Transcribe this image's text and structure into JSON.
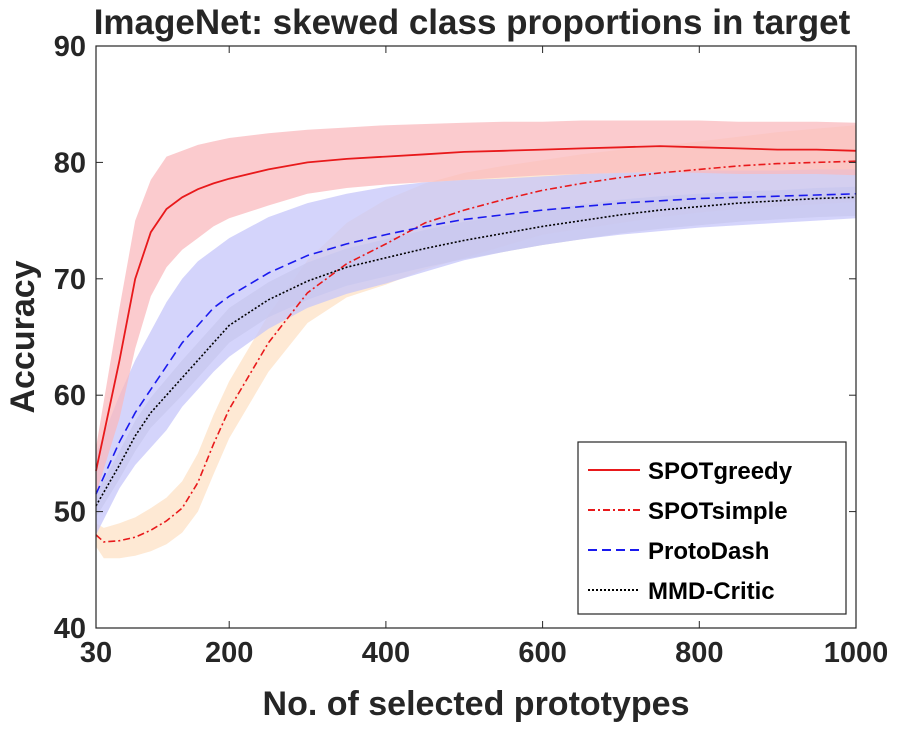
{
  "chart_data": {
    "type": "line",
    "title": "ImageNet: skewed class proportions in target",
    "xlabel": "No. of selected prototypes",
    "ylabel": "Accuracy",
    "xlim": [
      30,
      1000
    ],
    "ylim": [
      40,
      90
    ],
    "x_ticks": [
      30,
      200,
      400,
      600,
      800,
      1000
    ],
    "y_ticks": [
      40,
      50,
      60,
      70,
      80,
      90
    ],
    "legend_position": "bottom-right",
    "series": [
      {
        "name": "SPOTgreedy",
        "color": "#e8191b",
        "band_color": "#f9b9bd",
        "dash": "solid",
        "x": [
          30,
          60,
          80,
          100,
          120,
          140,
          160,
          180,
          200,
          250,
          300,
          350,
          400,
          450,
          500,
          550,
          600,
          650,
          700,
          750,
          800,
          850,
          900,
          950,
          1000
        ],
        "y": [
          53.5,
          63,
          70,
          74,
          76,
          77,
          77.7,
          78.2,
          78.6,
          79.4,
          80,
          80.3,
          80.5,
          80.7,
          80.9,
          81,
          81.1,
          81.2,
          81.3,
          81.4,
          81.3,
          81.2,
          81.1,
          81.1,
          81
        ],
        "upper": [
          55.5,
          67.5,
          75,
          78.5,
          80.5,
          81,
          81.5,
          81.8,
          82.1,
          82.5,
          82.8,
          83,
          83.2,
          83.3,
          83.4,
          83.5,
          83.5,
          83.6,
          83.6,
          83.6,
          83.6,
          83.5,
          83.5,
          83.5,
          83.4
        ],
        "lower": [
          51.5,
          58,
          64,
          68.5,
          71,
          72.5,
          73.5,
          74.5,
          75.2,
          76.3,
          77.3,
          77.8,
          78.1,
          78.3,
          78.5,
          78.7,
          78.9,
          79,
          79.1,
          79.2,
          79.1,
          79,
          79,
          79,
          78.9
        ]
      },
      {
        "name": "SPOTsimple",
        "color": "#e8191b",
        "band_color": "#fde1c6",
        "dash": "dashdot",
        "x": [
          30,
          40,
          60,
          80,
          100,
          120,
          140,
          160,
          180,
          200,
          250,
          300,
          350,
          400,
          450,
          500,
          550,
          600,
          650,
          700,
          750,
          800,
          850,
          900,
          950,
          1000
        ],
        "y": [
          48,
          47.4,
          47.5,
          47.8,
          48.4,
          49.2,
          50.3,
          52.5,
          55.8,
          58.8,
          64.5,
          68.8,
          71.3,
          73,
          74.8,
          75.9,
          76.8,
          77.6,
          78.2,
          78.7,
          79.1,
          79.4,
          79.7,
          79.9,
          80,
          80.1
        ],
        "upper": [
          49,
          48.6,
          49,
          49.5,
          50.3,
          51.2,
          52.6,
          55,
          58.3,
          61.2,
          66.9,
          71.6,
          74.8,
          76.8,
          78.2,
          79.1,
          79.7,
          80.2,
          80.7,
          81.1,
          81.4,
          81.8,
          82.2,
          82.6,
          82.9,
          83.2
        ],
        "lower": [
          47,
          46,
          46,
          46.2,
          46.6,
          47.2,
          48.2,
          50,
          53.2,
          56.3,
          62,
          66.2,
          68.4,
          69.5,
          70.8,
          71.8,
          72.8,
          73.8,
          74.3,
          74.8,
          75.3,
          75.7,
          76,
          76.2,
          76.4,
          76.6
        ]
      },
      {
        "name": "ProtoDash",
        "color": "#1a1aee",
        "band_color": "#c5c5fa",
        "dash": "dashed",
        "x": [
          30,
          60,
          80,
          100,
          120,
          140,
          160,
          180,
          200,
          250,
          300,
          350,
          400,
          450,
          500,
          550,
          600,
          650,
          700,
          750,
          800,
          850,
          900,
          950,
          1000
        ],
        "y": [
          51.5,
          56,
          58.5,
          60.5,
          62.5,
          64.5,
          66,
          67.5,
          68.5,
          70.5,
          72,
          73,
          73.8,
          74.5,
          75.1,
          75.5,
          75.9,
          76.2,
          76.5,
          76.7,
          76.9,
          77,
          77.1,
          77.2,
          77.3
        ],
        "upper": [
          55,
          60,
          63,
          65.5,
          68,
          70,
          71.5,
          72.5,
          73.5,
          75.3,
          76.5,
          77.3,
          77.9,
          78.3,
          78.5,
          78.6,
          78.8,
          79,
          79.1,
          79.2,
          79.3,
          79.3,
          79.3,
          79.4,
          79.4
        ],
        "lower": [
          48,
          52,
          54,
          55.5,
          57,
          59,
          60.5,
          62,
          63.3,
          65.7,
          67.5,
          68.7,
          69.6,
          70.6,
          71.6,
          72.3,
          72.9,
          73.4,
          73.8,
          74.1,
          74.4,
          74.6,
          74.8,
          75,
          75.2
        ]
      },
      {
        "name": "MMD-Critic",
        "color": "#000000",
        "band_color": "#cccccc",
        "dash": "dotted",
        "x": [
          30,
          60,
          80,
          100,
          120,
          140,
          160,
          180,
          200,
          250,
          300,
          350,
          400,
          450,
          500,
          550,
          600,
          650,
          700,
          750,
          800,
          850,
          900,
          950,
          1000
        ],
        "y": [
          50.5,
          54,
          56.5,
          58.5,
          60,
          61.5,
          63,
          64.5,
          66,
          68.2,
          69.8,
          71,
          71.8,
          72.6,
          73.3,
          73.9,
          74.5,
          75,
          75.5,
          75.9,
          76.2,
          76.5,
          76.7,
          76.9,
          77
        ],
        "upper": [
          51.5,
          55.2,
          57.8,
          59.8,
          61.4,
          63,
          64.5,
          66,
          67.5,
          69.7,
          71.4,
          72.6,
          73.4,
          74.2,
          74.9,
          75.4,
          75.9,
          76.4,
          76.8,
          77.1,
          77.3,
          77.5,
          77.6,
          77.8,
          77.9
        ],
        "lower": [
          49.5,
          52.8,
          55.2,
          57.2,
          58.6,
          60,
          61.5,
          63,
          64.5,
          66.7,
          68.2,
          69.4,
          70.2,
          71,
          71.7,
          72.3,
          72.9,
          73.4,
          73.9,
          74.3,
          74.6,
          74.9,
          75.1,
          75.3,
          75.4
        ]
      }
    ]
  }
}
